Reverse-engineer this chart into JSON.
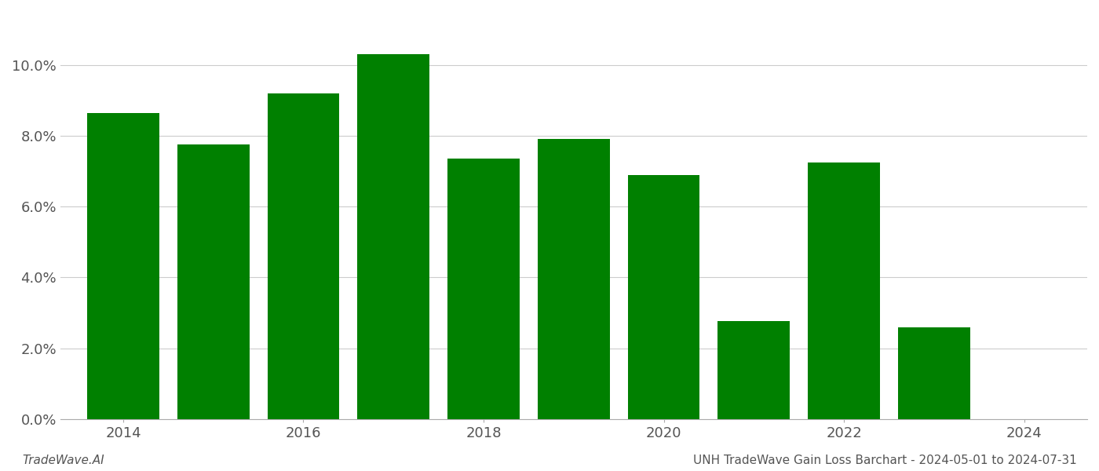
{
  "years": [
    2014,
    2015,
    2016,
    2017,
    2018,
    2019,
    2020,
    2021,
    2022,
    2023
  ],
  "values": [
    0.0865,
    0.0775,
    0.092,
    0.103,
    0.0735,
    0.079,
    0.069,
    0.0278,
    0.0725,
    0.026
  ],
  "bar_color": "#008000",
  "background_color": "#ffffff",
  "footer_left": "TradeWave.AI",
  "footer_right": "UNH TradeWave Gain Loss Barchart - 2024-05-01 to 2024-07-31",
  "ylim": [
    0,
    0.115
  ],
  "ytick_interval": 0.02,
  "grid_color": "#cccccc",
  "bar_width": 0.8,
  "footer_fontsize": 11,
  "tick_fontsize": 13,
  "xlim": [
    2013.3,
    2024.7
  ],
  "xtick_positions": [
    2014,
    2016,
    2018,
    2020,
    2022,
    2024
  ],
  "xtick_labels": [
    "2014",
    "2016",
    "2018",
    "2020",
    "2022",
    "2024"
  ]
}
